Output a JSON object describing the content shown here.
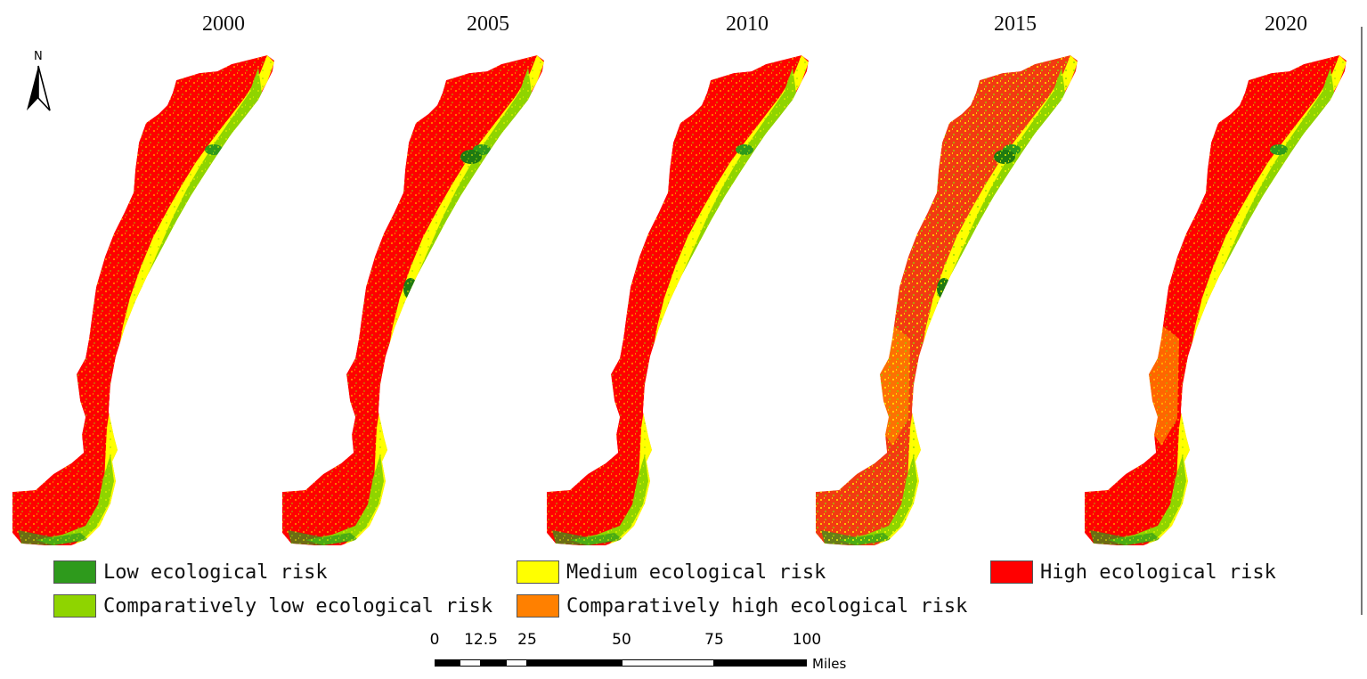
{
  "figure": {
    "years": [
      "2000",
      "2005",
      "2010",
      "2015",
      "2020"
    ],
    "north_label": "N",
    "icons": [
      "north-arrow-icon"
    ]
  },
  "legend": [
    {
      "label": "Low ecological risk",
      "color": "#2e9a1c"
    },
    {
      "label": "Medium ecological risk",
      "color": "#ffff00"
    },
    {
      "label": "High ecological risk",
      "color": "#ff0000"
    },
    {
      "label": "Comparatively low ecological risk",
      "color": "#8fd400"
    },
    {
      "label": "Comparatively high ecological risk",
      "color": "#ff8000"
    }
  ],
  "scale_bar": {
    "ticks": [
      "0",
      "12.5",
      "25",
      "50",
      "75",
      "100"
    ],
    "units": "Miles"
  }
}
